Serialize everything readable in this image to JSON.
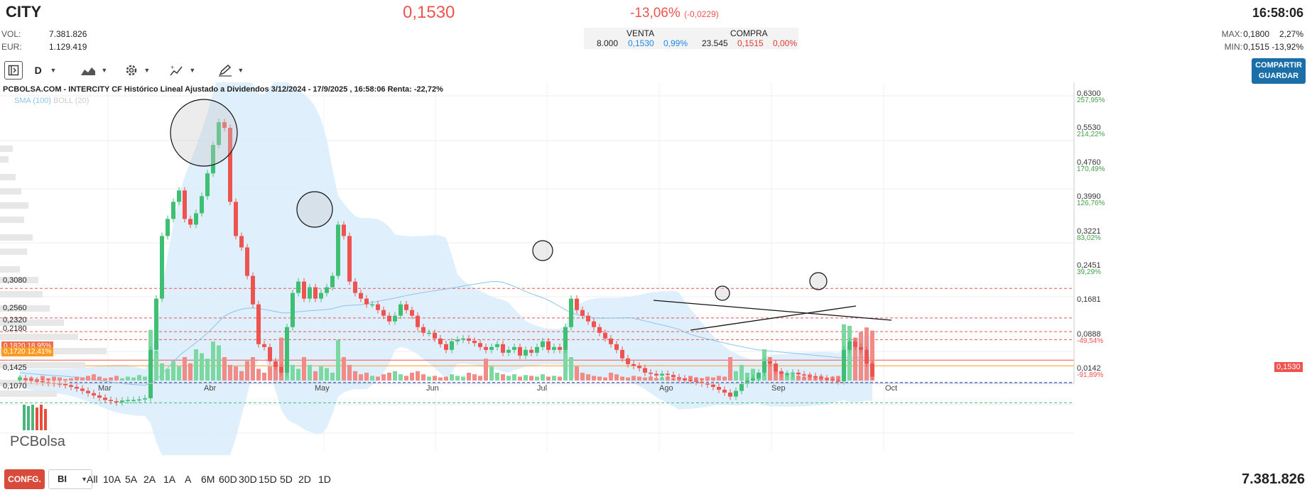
{
  "header": {
    "ticker": "CITY",
    "last": "0,1530",
    "change_pct": "-13,06%",
    "change_abs": "(-0,0229)",
    "time": "16:58:06",
    "vol_label": "VOL:",
    "vol_value": "7.381.826",
    "eur_label": "EUR:",
    "eur_value": "1.129.419",
    "max_label": "MAX:",
    "max_value": "0,1800",
    "max_pct": "2,27%",
    "min_label": "MIN:",
    "min_value": "0,1515",
    "min_pct": "-13,92%"
  },
  "book": {
    "venta_label": "VENTA",
    "compra_label": "COMPRA",
    "venta_qty": "8.000",
    "venta_price": "0,1530",
    "venta_pct": "0,99%",
    "compra_qty": "23.545",
    "compra_price": "0,1515",
    "compra_pct": "0,00%"
  },
  "toolbar": {
    "period": "D",
    "share_label": "COMPARTIR",
    "save_label": "GUARDAR"
  },
  "chart": {
    "title": "PCBOLSA.COM - INTERCITY CF Histórico Lineal Ajustado a Dividendos 3/12/2024 - 17/9/2025 , 16:58:06 Renta: -22,72%",
    "legend_sma": "SMA (100)",
    "legend_boll": "BOLL (20)",
    "logo_text": "PCBolsa",
    "left_levels": [
      "0,3080",
      "0,2560",
      "0,2320",
      "0,2180",
      "0,1425",
      "0,1070"
    ],
    "badge_1": "0,1820  18,95%",
    "badge_2": "0,1720  12,41%",
    "right_axis": [
      {
        "price": "0,6300",
        "pct": "257,95%"
      },
      {
        "price": "0,5530",
        "pct": "214,22%"
      },
      {
        "price": "0,4760",
        "pct": "170,49%"
      },
      {
        "price": "0,3990",
        "pct": "126,76%"
      },
      {
        "price": "0,3221",
        "pct": "83,02%"
      },
      {
        "price": "0,2451",
        "pct": "39,29%"
      },
      {
        "price": "0,1681",
        "pct": ""
      },
      {
        "price": "0,0888",
        "pct": "-49,54%"
      },
      {
        "price": "0,0142",
        "pct": "-91,89%"
      }
    ],
    "last_badge": "0,1530",
    "months": [
      "Mar",
      "Abr",
      "May",
      "Jun",
      "Jul",
      "Ago",
      "Sep",
      "Oct"
    ]
  },
  "chart_data": {
    "type": "candlestick",
    "title": "PCBOLSA.COM - INTERCITY CF Histórico Lineal Ajustado a Dividendos 3/12/2024 - 17/9/2025 , 16:58:06 Renta: -22,72%",
    "ylim": [
      0.01,
      0.65
    ],
    "months": [
      "Mar",
      "Abr",
      "May",
      "Jun",
      "Jul",
      "Ago",
      "Sep",
      "Oct"
    ],
    "closes": [
      0.15,
      0.148,
      0.146,
      0.145,
      0.143,
      0.142,
      0.141,
      0.14,
      0.138,
      0.135,
      0.132,
      0.128,
      0.124,
      0.12,
      0.116,
      0.112,
      0.11,
      0.108,
      0.111,
      0.112,
      0.112,
      0.113,
      0.115,
      0.2,
      0.29,
      0.4,
      0.43,
      0.46,
      0.48,
      0.43,
      0.42,
      0.44,
      0.47,
      0.51,
      0.56,
      0.6,
      0.59,
      0.46,
      0.4,
      0.38,
      0.33,
      0.28,
      0.21,
      0.205,
      0.18,
      0.17,
      0.16,
      0.24,
      0.3,
      0.32,
      0.29,
      0.31,
      0.29,
      0.3,
      0.31,
      0.33,
      0.42,
      0.4,
      0.32,
      0.3,
      0.29,
      0.28,
      0.28,
      0.27,
      0.26,
      0.25,
      0.26,
      0.28,
      0.27,
      0.26,
      0.24,
      0.23,
      0.23,
      0.22,
      0.21,
      0.2,
      0.215,
      0.218,
      0.22,
      0.216,
      0.212,
      0.205,
      0.2,
      0.205,
      0.21,
      0.195,
      0.2,
      0.205,
      0.19,
      0.2,
      0.195,
      0.205,
      0.215,
      0.2,
      0.205,
      0.2,
      0.24,
      0.29,
      0.27,
      0.26,
      0.25,
      0.24,
      0.23,
      0.22,
      0.21,
      0.2,
      0.185,
      0.175,
      0.172,
      0.168,
      0.16,
      0.158,
      0.155,
      0.158,
      0.156,
      0.152,
      0.15,
      0.147,
      0.146,
      0.144,
      0.141,
      0.139,
      0.135,
      0.13,
      0.125,
      0.118,
      0.128,
      0.14,
      0.146,
      0.15,
      0.16,
      0.18,
      0.176,
      0.162,
      0.158,
      0.158,
      0.16,
      0.157,
      0.155,
      0.154,
      0.152,
      0.15,
      0.148,
      0.146,
      0.145,
      0.2,
      0.215,
      0.205,
      0.2,
      0.176,
      0.153
    ],
    "volumes": [
      0.05,
      0.03,
      0.04,
      0.02,
      0.06,
      0.03,
      0.05,
      0.04,
      0.02,
      0.03,
      0.05,
      0.04,
      0.06,
      0.08,
      0.05,
      0.03,
      0.04,
      0.06,
      0.03,
      0.05,
      0.04,
      0.07,
      0.05,
      0.65,
      0.38,
      0.22,
      0.15,
      0.25,
      0.18,
      0.3,
      0.22,
      0.4,
      0.35,
      0.28,
      0.5,
      0.45,
      0.3,
      0.2,
      0.18,
      0.12,
      0.25,
      0.3,
      0.15,
      0.1,
      0.18,
      0.22,
      0.55,
      0.28,
      0.2,
      0.15,
      0.3,
      0.2,
      0.12,
      0.18,
      0.16,
      0.1,
      0.52,
      0.3,
      0.2,
      0.12,
      0.08,
      0.1,
      0.06,
      0.05,
      0.08,
      0.1,
      0.12,
      0.08,
      0.06,
      0.1,
      0.12,
      0.08,
      0.05,
      0.06,
      0.04,
      0.05,
      0.08,
      0.06,
      0.05,
      0.1,
      0.08,
      0.06,
      0.28,
      0.18,
      0.1,
      0.08,
      0.06,
      0.08,
      0.05,
      0.07,
      0.06,
      0.05,
      0.08,
      0.05,
      0.06,
      0.05,
      0.55,
      0.3,
      0.18,
      0.1,
      0.08,
      0.06,
      0.05,
      0.04,
      0.1,
      0.08,
      0.05,
      0.04,
      0.06,
      0.05,
      0.04,
      0.05,
      0.03,
      0.04,
      0.05,
      0.03,
      0.04,
      0.03,
      0.06,
      0.04,
      0.03,
      0.05,
      0.04,
      0.06,
      0.05,
      0.3,
      0.12,
      0.2,
      0.1,
      0.15,
      0.08,
      0.4,
      0.3,
      0.18,
      0.12,
      0.1,
      0.08,
      0.06,
      0.05,
      0.08,
      0.05,
      0.06,
      0.04,
      0.05,
      0.06,
      0.72,
      0.7,
      0.55,
      0.62,
      0.68,
      0.64
    ],
    "horizontal_levels": [
      0.308,
      0.256,
      0.232,
      0.218,
      0.182,
      0.172,
      0.1425,
      0.107
    ]
  },
  "bottom": {
    "config_label": "CONFG.",
    "mode": "BI",
    "periods": [
      "All",
      "10A",
      "5A",
      "2A",
      "1A",
      "A",
      "6M",
      "60D",
      "30D",
      "15D",
      "5D",
      "2D",
      "1D"
    ],
    "volume": "7.381.826"
  },
  "colors": {
    "up": "#3fbf74",
    "down": "#ef5350",
    "accent": "#1a6fa8",
    "band": "#d9ecfb"
  }
}
